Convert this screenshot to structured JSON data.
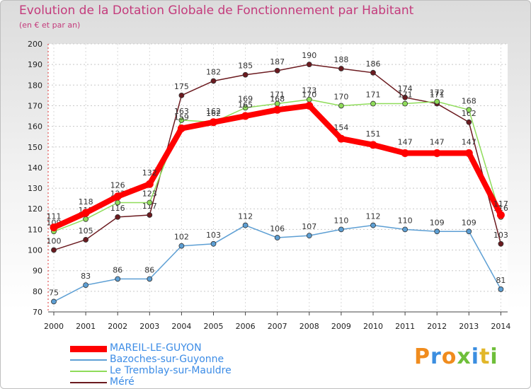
{
  "chart_data": {
    "type": "line",
    "title": "Evolution de la Dotation Globale de Fonctionnement par Habitant",
    "subtitle": "(en € et par an)",
    "xlabel": "",
    "ylabel": "",
    "ylim": [
      70,
      200
    ],
    "yticks": [
      70,
      80,
      90,
      100,
      110,
      120,
      130,
      140,
      150,
      160,
      170,
      180,
      190,
      200
    ],
    "categories": [
      "2000",
      "2001",
      "2002",
      "2003",
      "2004",
      "2005",
      "2006",
      "2007",
      "2008",
      "2009",
      "2010",
      "2011",
      "2012",
      "2013",
      "2014"
    ],
    "grid": true,
    "legend_position": "bottom-left",
    "series": [
      {
        "name": "Méré",
        "color": "#6b1a1f",
        "values": [
          100,
          105,
          116,
          117,
          175,
          182,
          185,
          187,
          190,
          188,
          186,
          174,
          171,
          162,
          103
        ]
      },
      {
        "name": "Le Tremblay-sur-Mauldre",
        "color": "#8fdc5a",
        "values": [
          109,
          115,
          123,
          123,
          163,
          162,
          169,
          171,
          173,
          170,
          171,
          171,
          172,
          168,
          116
        ]
      },
      {
        "name": "Bazoches-sur-Guyonne",
        "color": "#5d9fd4",
        "values": [
          75,
          83,
          86,
          86,
          102,
          103,
          112,
          106,
          107,
          110,
          112,
          110,
          109,
          109,
          81
        ]
      },
      {
        "name": "MAREIL-LE-GUYON",
        "color": "#ff0000",
        "values": [
          111,
          118,
          126,
          132,
          159,
          162,
          165,
          168,
          170,
          154,
          151,
          147,
          147,
          147,
          117
        ]
      }
    ],
    "legend": [
      "MAREIL-LE-GUYON",
      "Bazoches-sur-Guyonne",
      "Le Tremblay-sur-Mauldre",
      "Méré"
    ]
  },
  "logo": {
    "text": "Proxiti"
  }
}
